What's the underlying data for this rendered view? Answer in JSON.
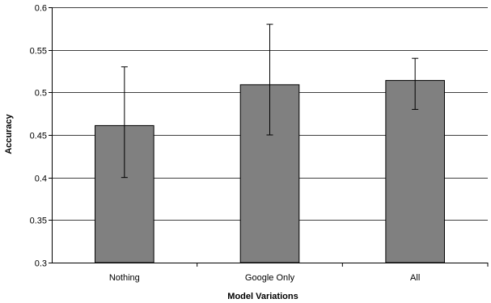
{
  "chart_data": {
    "type": "bar",
    "categories": [
      "Nothing",
      "Google Only",
      "All"
    ],
    "values": [
      0.461,
      0.509,
      0.514
    ],
    "error_low": [
      0.4,
      0.45,
      0.48
    ],
    "error_high": [
      0.53,
      0.58,
      0.54
    ],
    "xlabel": "Model Variations",
    "ylabel": "Accuracy",
    "ylim": [
      0.3,
      0.6
    ],
    "yticks": [
      0.3,
      0.35,
      0.4,
      0.45,
      0.5,
      0.55,
      0.6
    ],
    "ytick_labels": [
      "0.3",
      "0.35",
      "0.4",
      "0.45",
      "0.5",
      "0.55",
      "0.6"
    ],
    "grid": true,
    "legend": "none",
    "colors": {
      "bar_fill": "#808080",
      "bar_stroke": "#000000",
      "grid": "#000000",
      "axis": "#000000"
    }
  }
}
